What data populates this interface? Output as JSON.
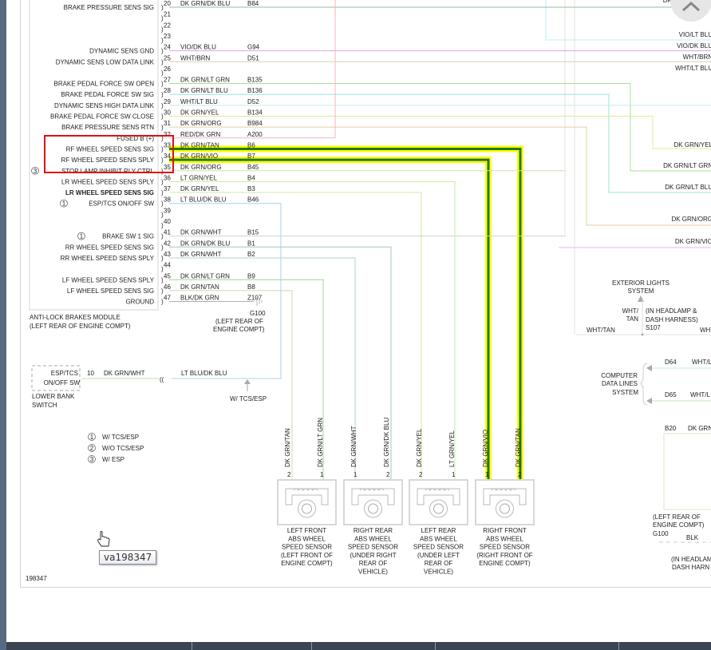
{
  "module": {
    "name_line1": "ANTI-LOCK BRAKES MODULE",
    "name_line2": "(LEFT REAR OF ENGINE COMPT)",
    "pins": [
      {
        "n": "20",
        "color": "DK GRN/DK BLU",
        "code": "B84",
        "label": "BRAKE PRESSURE SENS SIG",
        "wire": "#9db8a0"
      },
      {
        "n": "21"
      },
      {
        "n": "22"
      },
      {
        "n": "23"
      },
      {
        "n": "24",
        "color": "VIO/DK BLU",
        "code": "G94",
        "label": "DYNAMIC SENS GND",
        "wire": "#d9a6e6"
      },
      {
        "n": "25",
        "color": "WHT/BRN",
        "code": "D51",
        "label": "DYNAMIC SENS LOW DATA LINK",
        "wire": "#d8d0c4"
      },
      {
        "n": "26"
      },
      {
        "n": "27",
        "color": "DK GRN/LT GRN",
        "code": "B135",
        "label": "BRAKE PEDAL FORCE SW OPEN",
        "wire": "#a6e09a"
      },
      {
        "n": "28",
        "color": "DK GRN/LT BLU",
        "code": "B136",
        "label": "BRAKE PEDAL FORCE SW SIG",
        "wire": "#9ee6d6"
      },
      {
        "n": "29",
        "color": "WHT/LT BLU",
        "code": "D52",
        "label": "DYNAMIC SENS HIGH DATA LINK",
        "wire": "#bfeef2"
      },
      {
        "n": "30",
        "color": "DK GRN/YEL",
        "code": "B134",
        "label": "BRAKE PEDAL FORCE SW CLOSE",
        "wire": "#e4e89a"
      },
      {
        "n": "31",
        "color": "DK GRN/ORG",
        "code": "B984",
        "label": "BRAKE PRESSURE SENS RTN",
        "wire": "#e6cfa6"
      },
      {
        "n": "32",
        "color": "RED/DK GRN",
        "code": "A200",
        "label": "FUSED B (+)",
        "wire": "#f0b8b8"
      },
      {
        "n": "33",
        "color": "DK GRN/TAN",
        "code": "B6",
        "label": "RF WHEEL SPEED SENS SIG",
        "wire": "#1f7a1f",
        "highlight": true
      },
      {
        "n": "34",
        "color": "DK GRN/VIO",
        "code": "B7",
        "label": "RF WHEEL SPEED SENS SPLY",
        "wire": "#1f7a1f",
        "highlight": true
      },
      {
        "n": "35",
        "color": "DK GRN/ORG",
        "code": "B45",
        "label": "STOP LAMP INHIBIT RLY CTRL",
        "marker": "3",
        "wire": "#cfe0b0"
      },
      {
        "n": "36",
        "color": "LT GRN/YEL",
        "code": "B4",
        "label": "LR WHEEL SPEED SENS SPLY",
        "wire": "#c8ec9c"
      },
      {
        "n": "37",
        "color": "DK GRN/YEL",
        "code": "B3",
        "label": "LR WHEEL SPEED SENS SIG",
        "wire": "#d6e8a6",
        "bold": true
      },
      {
        "n": "38",
        "color": "LT BLU/DK BLU",
        "code": "B46",
        "label": "ESP/TCS ON/OFF SW",
        "marker": "1",
        "wire": "#a8d0ec"
      },
      {
        "n": "39"
      },
      {
        "n": "40"
      },
      {
        "n": "41",
        "color": "DK GRN/WHT",
        "code": "B15",
        "label": "BRAKE SW 1 SIG",
        "marker": "1",
        "wire": "#c2dcc2"
      },
      {
        "n": "42",
        "color": "DK GRN/DK BLU",
        "code": "B1",
        "label": "RR WHEEL SPEED SENS SIG",
        "wire": "#a6c0c8"
      },
      {
        "n": "43",
        "color": "DK GRN/WHT",
        "code": "B2",
        "label": "RR WHEEL SPEED SENS SPLY",
        "wire": "#b8d0c0"
      },
      {
        "n": "44"
      },
      {
        "n": "45",
        "color": "DK GRN/LT GRN",
        "code": "B9",
        "label": "LF WHEEL SPEED SENS SPLY",
        "wire": "#9cd890"
      },
      {
        "n": "46",
        "color": "DK GRN/TAN",
        "code": "B8",
        "label": "LF WHEEL SPEED SENS SIG",
        "wire": "#c6dcb0"
      },
      {
        "n": "47",
        "color": "BLK/DK GRN",
        "code": "Z107",
        "label": "GROUND",
        "wire": "#b0b0b0"
      }
    ]
  },
  "ground_left": {
    "name": "G100",
    "loc1": "(LEFT REAR OF",
    "loc2": "ENGINE COMPT)"
  },
  "right_labels": [
    "DK GRN/DK BLU",
    "VIO/LT BLU",
    "VIO/DK BLU",
    "WHT/BRN",
    "WHT/LT BLU",
    "DK GRN/YEL",
    "DK GRN/LT GRN",
    "DK GRN/LT BLU",
    "DK GRN/ORG",
    "DK GRN/VIO"
  ],
  "switch": {
    "name1": "ESP/TCS",
    "name2": "ON/OFF SW",
    "pin": "10",
    "wire_left": "DK GRN/WHT",
    "wire_right": "LT BLU/DK BLU",
    "loc1": "LOWER BANK",
    "loc2": "SWITCH",
    "option": "W/ TCS/ESP"
  },
  "legend": [
    {
      "marker": "1",
      "text": "W/ TCS/ESP"
    },
    {
      "marker": "2",
      "text": "W/O TCS/ESP"
    },
    {
      "marker": "3",
      "text": "W/ ESP"
    }
  ],
  "sensors": [
    {
      "lines": [
        "LEFT FRONT",
        "ABS WHEEL",
        "SPEED SENSOR",
        "(LEFT FRONT OF",
        "ENGINE COMPT)"
      ],
      "pins": [
        {
          "n": "2",
          "wire": "DK GRN/TAN"
        },
        {
          "n": "1",
          "wire": "DK GRN/LT GRN"
        }
      ]
    },
    {
      "lines": [
        "RIGHT REAR",
        "ABS WHEEL",
        "SPEED SENSOR",
        "(UNDER RIGHT",
        "REAR OF",
        "VEHICLE)"
      ],
      "pins": [
        {
          "n": "1",
          "wire": "DK GRN/WHT"
        },
        {
          "n": "2",
          "wire": "DK GRN/DK BLU"
        }
      ]
    },
    {
      "lines": [
        "LEFT REAR",
        "ABS WHEEL",
        "SPEED SENSOR",
        "(UNDER LEFT",
        "REAR OF",
        "VEHICLE)"
      ],
      "pins": [
        {
          "n": "2",
          "wire": "DK GRN/YEL"
        },
        {
          "n": "1",
          "wire": "LT GRN/YEL"
        }
      ]
    },
    {
      "lines": [
        "RIGHT FRONT",
        "ABS WHEEL",
        "SPEED SENSOR",
        "(RIGHT FRONT OF",
        "ENGINE COMPT)"
      ],
      "pins": [
        {
          "n": "1",
          "wire": "DK GRN/VIO"
        },
        {
          "n": "2",
          "wire": "DK GRN/TAN"
        }
      ]
    }
  ],
  "exterior_lights": {
    "title1": "EXTERIOR LIGHTS",
    "title2": "SYSTEM",
    "wire1": "WHT/",
    "wire2": "TAN",
    "harness1": "(IN HEADLAMP &",
    "harness2": "DASH HARNESS)",
    "splice": "S107",
    "left_wire": "WHT/TAN",
    "right_wire": "WHT"
  },
  "data_lines": {
    "title1": "COMPUTER",
    "title2": "DATA LINES",
    "title3": "SYSTEM",
    "d64": "D64",
    "d64_wire": "WHT/L",
    "d65": "D65",
    "d65_wire": "WHT/L"
  },
  "right_lower": {
    "b20": "B20",
    "b20_wire": "DK GRN",
    "loc1": "(LEFT REAR OF",
    "loc2": "ENGINE COMPT)",
    "ground": "G100",
    "blk": "BLK",
    "harness1": "(IN HEADLAM",
    "harness2": "DASH HARN"
  },
  "diagram_id": "198347",
  "tooltip": "va198347",
  "colors": {
    "highlight": "#ffff00",
    "highlight_wire": "#1f7a1f",
    "selection_box": "#e01010",
    "toolbar": "#3b4452",
    "left_strip": "#566b82"
  }
}
